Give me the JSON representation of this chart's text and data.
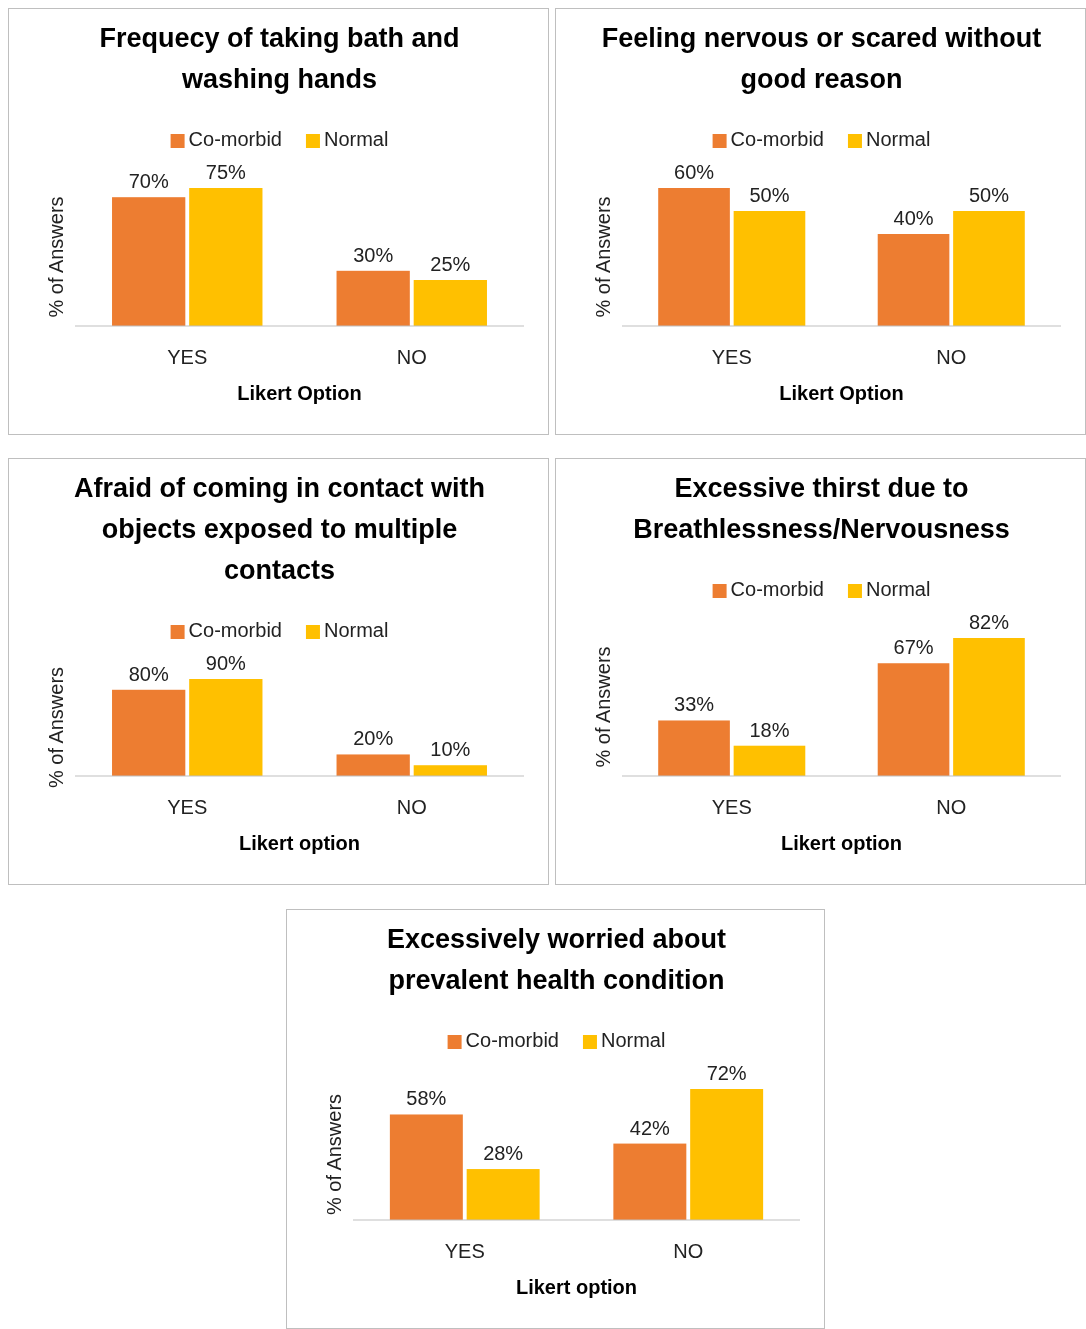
{
  "chart_data": [
    {
      "type": "bar",
      "title": "Frequecy of taking bath and washing hands",
      "xlabel": "Likert Option",
      "ylabel": "% of Answers",
      "categories": [
        "YES",
        "NO"
      ],
      "legend": "top",
      "series": [
        {
          "name": "Co-morbid",
          "color": "#ed7d31",
          "values": [
            70,
            30
          ],
          "value_labels": [
            "70%",
            "30%"
          ]
        },
        {
          "name": "Normal",
          "color": "#ffc000",
          "values": [
            75,
            25
          ],
          "value_labels": [
            "75%",
            "25%"
          ]
        }
      ]
    },
    {
      "type": "bar",
      "title": "Feeling nervous or scared without good reason",
      "xlabel": "Likert Option",
      "ylabel": "% of Answers",
      "categories": [
        "YES",
        "NO"
      ],
      "legend": "top",
      "series": [
        {
          "name": "Co-morbid",
          "color": "#ed7d31",
          "values": [
            60,
            40
          ],
          "value_labels": [
            "60%",
            "40%"
          ]
        },
        {
          "name": "Normal",
          "color": "#ffc000",
          "values": [
            50,
            50
          ],
          "value_labels": [
            "50%",
            "50%"
          ]
        }
      ]
    },
    {
      "type": "bar",
      "title": "Afraid of coming in contact with objects exposed to multiple contacts",
      "xlabel": "Likert option",
      "ylabel": "% of Answers",
      "categories": [
        "YES",
        "NO"
      ],
      "legend": "top",
      "series": [
        {
          "name": "Co-morbid",
          "color": "#ed7d31",
          "values": [
            80,
            20
          ],
          "value_labels": [
            "80%",
            "20%"
          ]
        },
        {
          "name": "Normal",
          "color": "#ffc000",
          "values": [
            90,
            10
          ],
          "value_labels": [
            "90%",
            "10%"
          ]
        }
      ]
    },
    {
      "type": "bar",
      "title": "Excessive thirst due to Breathlessness/Nervousness",
      "xlabel": "Likert option",
      "ylabel": "% of Answers",
      "categories": [
        "YES",
        "NO"
      ],
      "legend": "top",
      "series": [
        {
          "name": "Co-morbid",
          "color": "#ed7d31",
          "values": [
            33,
            67
          ],
          "value_labels": [
            "33%",
            "67%"
          ]
        },
        {
          "name": "Normal",
          "color": "#ffc000",
          "values": [
            18,
            82
          ],
          "value_labels": [
            "18%",
            "82%"
          ]
        }
      ]
    },
    {
      "type": "bar",
      "title": "Excessively worried about prevalent health condition",
      "xlabel": "Likert option",
      "ylabel": "% of Answers",
      "categories": [
        "YES",
        "NO"
      ],
      "legend": "top",
      "series": [
        {
          "name": "Co-morbid",
          "color": "#ed7d31",
          "values": [
            58,
            42
          ],
          "value_labels": [
            "58%",
            "42%"
          ]
        },
        {
          "name": "Normal",
          "color": "#ffc000",
          "values": [
            28,
            72
          ],
          "value_labels": [
            "28%",
            "72%"
          ]
        }
      ]
    }
  ]
}
